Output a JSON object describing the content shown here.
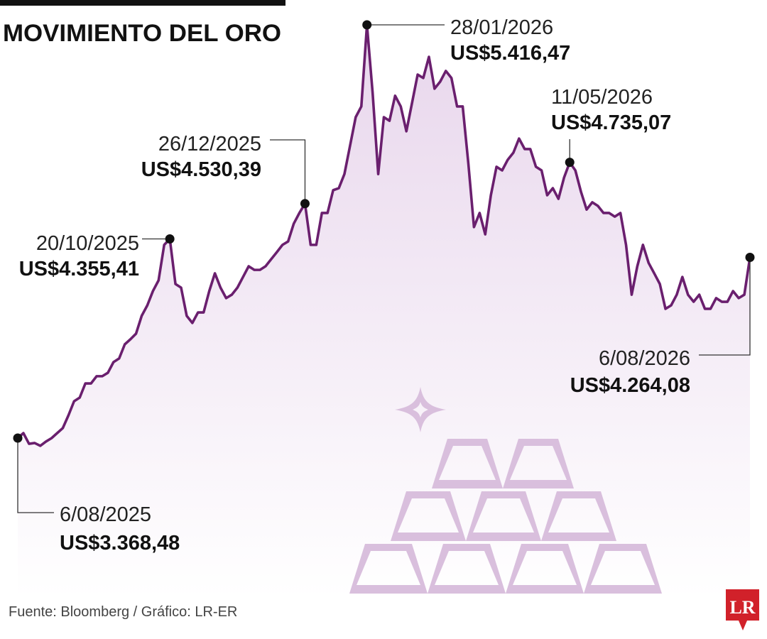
{
  "chart_data": {
    "type": "line",
    "title": "MOVIMIENTO DEL ORO",
    "source": "Fuente: Bloomberg / Gráfico: LR-ER",
    "logo": "LR",
    "color": "#6a1f6e",
    "area_color": "#e8d6ec",
    "categories": [
      "6/08/2025",
      null,
      null,
      null,
      null,
      null,
      null,
      null,
      null,
      null,
      null,
      null,
      null,
      null,
      null,
      null,
      null,
      null,
      null,
      null,
      null,
      null,
      null,
      null,
      null,
      null,
      null,
      "20/10/2025",
      null,
      null,
      null,
      null,
      null,
      null,
      null,
      null,
      null,
      null,
      null,
      null,
      null,
      null,
      null,
      null,
      null,
      null,
      null,
      null,
      null,
      null,
      null,
      "26/12/2025",
      null,
      null,
      null,
      null,
      null,
      null,
      null,
      null,
      null,
      null,
      "28/01/2026",
      null,
      null,
      null,
      null,
      null,
      null,
      null,
      null,
      null,
      null,
      null,
      null,
      null,
      null,
      null,
      null,
      null,
      null,
      null,
      null,
      null,
      null,
      null,
      null,
      null,
      null,
      null,
      null,
      null,
      null,
      null,
      null,
      null,
      null,
      null,
      "11/05/2026",
      null,
      null,
      null,
      null,
      null,
      null,
      null,
      null,
      null,
      null,
      null,
      null,
      null,
      null,
      null,
      null,
      null,
      null,
      null,
      null,
      null,
      null,
      null,
      null,
      null,
      null,
      null,
      null,
      null,
      null,
      null,
      "6/08/2026"
    ],
    "values": [
      3368.48,
      3393,
      3340,
      3344,
      3330,
      3351,
      3368,
      3393,
      3418,
      3481,
      3551,
      3569,
      3639,
      3639,
      3675,
      3675,
      3692,
      3745,
      3763,
      3833,
      3858,
      3886,
      3974,
      4026,
      4097,
      4150,
      4326,
      4355.41,
      4132,
      4114,
      3974,
      3939,
      3991,
      3991,
      4097,
      4185,
      4114,
      4062,
      4079,
      4114,
      4167,
      4220,
      4202,
      4202,
      4220,
      4255,
      4290,
      4326,
      4343,
      4431,
      4484,
      4530.39,
      4326,
      4326,
      4484,
      4484,
      4597,
      4607,
      4677,
      4818,
      4959,
      5012,
      5416.47,
      5082,
      4677,
      4959,
      4941,
      5065,
      5012,
      4889,
      5029,
      5170,
      5153,
      5258,
      5100,
      5135,
      5188,
      5153,
      5012,
      5012,
      4730,
      4414,
      4484,
      4378,
      4572,
      4713,
      4695,
      4748,
      4783,
      4853,
      4801,
      4801,
      4713,
      4695,
      4572,
      4607,
      4554,
      4660,
      4735.07,
      4695,
      4589,
      4501,
      4537,
      4519,
      4484,
      4484,
      4466,
      4484,
      4326,
      4079,
      4220,
      4326,
      4237,
      4185,
      4132,
      4009,
      4026,
      4079,
      4167,
      4079,
      4044,
      4079,
      4009,
      4009,
      4062,
      4044,
      4044,
      4097,
      4062,
      4079,
      4264.08
    ],
    "value_labels": [
      "US$3.368,48",
      null,
      null,
      null,
      null,
      null,
      null,
      null,
      null,
      null,
      null,
      null,
      null,
      null,
      null,
      null,
      null,
      null,
      null,
      null,
      null,
      null,
      null,
      null,
      null,
      null,
      null,
      "US$4.355,41",
      null,
      null,
      null,
      null,
      null,
      null,
      null,
      null,
      null,
      null,
      null,
      null,
      null,
      null,
      null,
      null,
      null,
      null,
      null,
      null,
      null,
      null,
      null,
      "US$4.530,39",
      null,
      null,
      null,
      null,
      null,
      null,
      null,
      null,
      null,
      null,
      "US$5.416,47",
      null,
      null,
      null,
      null,
      null,
      null,
      null,
      null,
      null,
      null,
      null,
      null,
      null,
      null,
      null,
      null,
      null,
      null,
      null,
      null,
      null,
      null,
      null,
      null,
      null,
      null,
      null,
      null,
      null,
      null,
      null,
      null,
      null,
      null,
      null,
      "US$4.735,07",
      null,
      null,
      null,
      null,
      null,
      null,
      null,
      null,
      null,
      null,
      null,
      null,
      null,
      null,
      null,
      null,
      null,
      null,
      null,
      null,
      null,
      null,
      null,
      null,
      null,
      null,
      null,
      null,
      null,
      null,
      null,
      "US$4.264,08"
    ]
  }
}
